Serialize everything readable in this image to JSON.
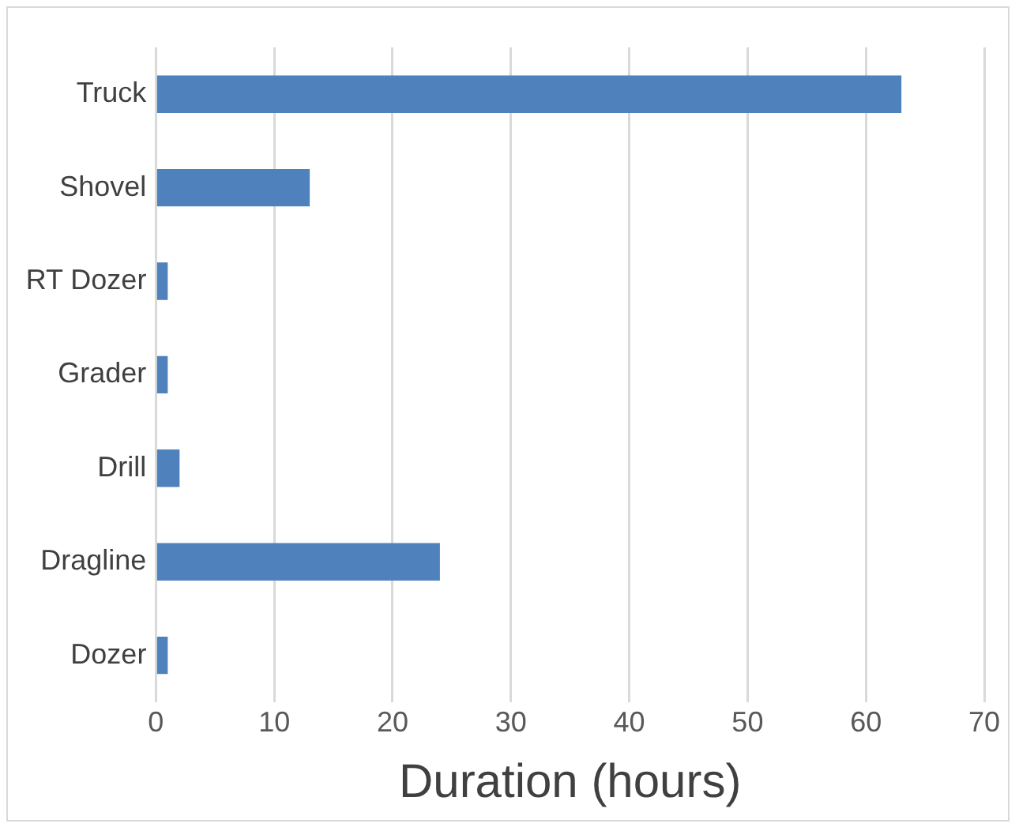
{
  "chart_data": {
    "type": "bar",
    "orientation": "horizontal",
    "xlabel": "Duration (hours)",
    "categories": [
      "Truck",
      "Shovel",
      "RT Dozer",
      "Grader",
      "Drill",
      "Dragline",
      "Dozer"
    ],
    "values": [
      63,
      13,
      1,
      1,
      2,
      24,
      1
    ],
    "color": "#4f81bd",
    "xlim": [
      0,
      70
    ],
    "xticks": [
      0,
      10,
      20,
      30,
      40,
      50,
      60,
      70
    ],
    "grid": "x"
  }
}
